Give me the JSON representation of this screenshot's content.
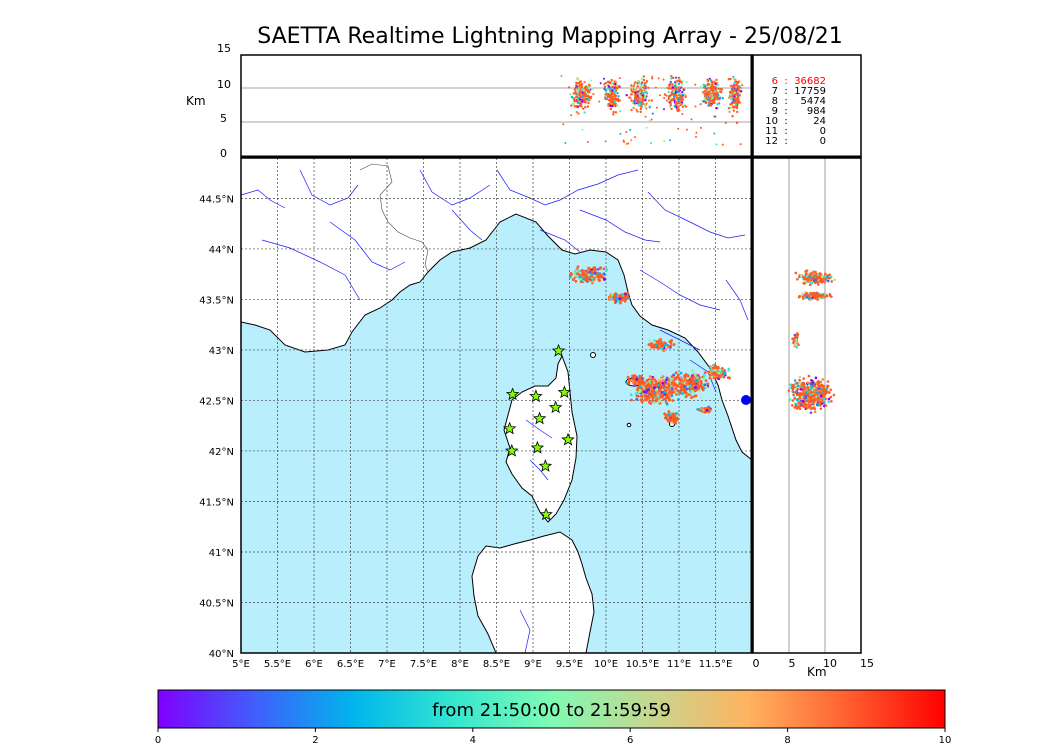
{
  "title": "SAETTA Realtime Lightning Mapping Array - 25/08/21",
  "colorbar": {
    "label": "from 21:50:00 to 21:59:59",
    "ticks": [
      "0",
      "2",
      "4",
      "6",
      "8",
      "10"
    ],
    "colors": [
      "#7f00ff",
      "#3f60fb",
      "#00b6ec",
      "#34e6d0",
      "#7ffbb4",
      "#c5d790",
      "#ffb360",
      "#ff6030",
      "#ff0000"
    ]
  },
  "altitude_axis": {
    "unit": "Km",
    "ticks": [
      "0",
      "5",
      "10",
      "15"
    ]
  },
  "map": {
    "lon_ticks": [
      "5°E",
      "5.5°E",
      "6°E",
      "6.5°E",
      "7°E",
      "7.5°E",
      "8°E",
      "8.5°E",
      "9°E",
      "9.5°E",
      "10°E",
      "10.5°E",
      "11°E",
      "11.5°E"
    ],
    "lat_ticks": [
      "40°N",
      "40.5°N",
      "41°N",
      "41.5°N",
      "42°N",
      "42.5°N",
      "43°N",
      "43.5°N",
      "44°N",
      "44.5°N"
    ],
    "sea_color": "#b9eefc",
    "land_color": "#ffffff",
    "river_color": "#1a1aff",
    "stations": [
      {
        "lon": 9.35,
        "lat": 42.99
      },
      {
        "lon": 8.72,
        "lat": 42.56
      },
      {
        "lon": 9.04,
        "lat": 42.54
      },
      {
        "lon": 9.43,
        "lat": 42.58
      },
      {
        "lon": 9.31,
        "lat": 42.43
      },
      {
        "lon": 9.09,
        "lat": 42.32
      },
      {
        "lon": 8.68,
        "lat": 42.22
      },
      {
        "lon": 9.48,
        "lat": 42.11
      },
      {
        "lon": 8.71,
        "lat": 42.0
      },
      {
        "lon": 9.06,
        "lat": 42.03
      },
      {
        "lon": 9.17,
        "lat": 41.85
      },
      {
        "lon": 9.18,
        "lat": 41.37
      }
    ],
    "station_icon": "star-icon",
    "station_color": "#7fff00"
  },
  "right_axis": {
    "unit": "Km",
    "ticks": [
      "0",
      "5",
      "10",
      "15"
    ]
  },
  "station_counts": [
    {
      "stations": "6",
      "count": "36682",
      "color": "#ff0000"
    },
    {
      "stations": "7",
      "count": "17759",
      "color": "#000000"
    },
    {
      "stations": "8",
      "count": "5474",
      "color": "#000000"
    },
    {
      "stations": "9",
      "count": "984",
      "color": "#000000"
    },
    {
      "stations": "10",
      "count": "24",
      "color": "#000000"
    },
    {
      "stations": "11",
      "count": "0",
      "color": "#000000"
    },
    {
      "stations": "12",
      "count": "0",
      "color": "#000000"
    }
  ]
}
